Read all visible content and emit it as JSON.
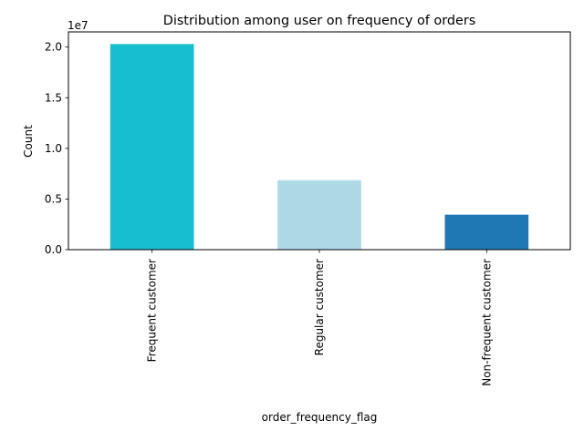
{
  "chart_data": {
    "type": "bar",
    "title": "Distribution among user on frequency of orders",
    "xlabel": "order_frequency_flag",
    "ylabel": "Count",
    "offset_label": "1e7",
    "categories": [
      "Frequent customer",
      "Regular customer",
      "Non-frequent customer"
    ],
    "values": [
      20300000,
      6850000,
      3450000
    ],
    "colors": [
      "#17becf",
      "#add8e6",
      "#1f77b4"
    ],
    "ylim": [
      0,
      21500000
    ],
    "yticks": [
      0,
      5000000,
      10000000,
      15000000,
      20000000
    ],
    "ytick_labels": [
      "0.0",
      "0.5",
      "1.0",
      "1.5",
      "2.0"
    ],
    "grid": false,
    "legend": false
  }
}
